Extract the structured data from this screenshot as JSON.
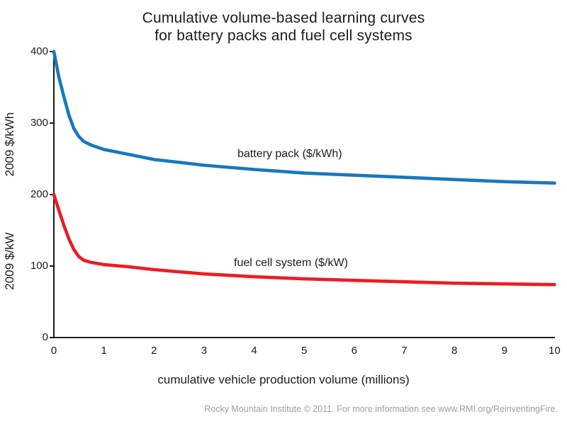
{
  "title": {
    "line1": "Cumulative volume-based learning curves",
    "line2": "for battery packs and fuel cell systems"
  },
  "axes": {
    "y_upper_label": "2009 $/kWh",
    "y_lower_label": "2009 $/kW",
    "x_label": "cumulative vehicle production volume (millions)"
  },
  "footer": "Rocky Mountain Institute © 2011. For more information see www.RMI.org/ReinventingFire.",
  "colors": {
    "axis": "#000000",
    "battery_blue": "#1778be",
    "fuel_cell_red": "#ec1c24",
    "text": "#1c1c1c",
    "footer_gray": "#9c9ea0"
  },
  "chart_data": {
    "type": "line",
    "title": "Cumulative volume-based learning curves for battery packs and fuel cell systems",
    "xlabel": "cumulative vehicle production volume (millions)",
    "ylabel_upper_segment": "2009 $/kWh",
    "ylabel_lower_segment": "2009 $/kW",
    "xlim": [
      0,
      10
    ],
    "ylim": [
      0,
      400
    ],
    "x_ticks": [
      0,
      1,
      2,
      3,
      4,
      5,
      6,
      7,
      8,
      9,
      10
    ],
    "y_ticks": [
      0,
      100,
      200,
      300,
      400
    ],
    "grid": false,
    "legend_position": "inline-labels",
    "series": [
      {
        "name": "battery pack ($/kWh)",
        "color": "#1778be",
        "x": [
          0,
          0.05,
          0.1,
          0.2,
          0.3,
          0.4,
          0.5,
          0.6,
          0.75,
          1,
          1.5,
          2,
          3,
          4,
          5,
          6,
          7,
          8,
          9,
          10
        ],
        "values": [
          400,
          382,
          364,
          337,
          311,
          292,
          281,
          274,
          269,
          263,
          256,
          249,
          241,
          235,
          230,
          227,
          224,
          221,
          218,
          216
        ]
      },
      {
        "name": "fuel cell system ($/kW)",
        "color": "#ec1c24",
        "x": [
          0,
          0.05,
          0.1,
          0.2,
          0.3,
          0.4,
          0.5,
          0.6,
          0.75,
          1,
          1.5,
          2,
          3,
          4,
          5,
          6,
          7,
          8,
          9,
          10
        ],
        "values": [
          200,
          189,
          178,
          157,
          138,
          123,
          113,
          108,
          105,
          102,
          99,
          95,
          89,
          85,
          82,
          80,
          78,
          76,
          75,
          74
        ]
      }
    ]
  }
}
